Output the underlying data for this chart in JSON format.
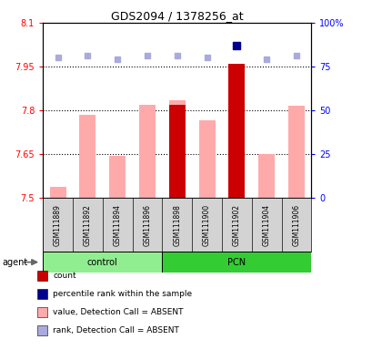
{
  "title": "GDS2094 / 1378256_at",
  "samples": [
    "GSM111889",
    "GSM111892",
    "GSM111894",
    "GSM111896",
    "GSM111898",
    "GSM111900",
    "GSM111902",
    "GSM111904",
    "GSM111906"
  ],
  "groups": [
    {
      "name": "control",
      "indices": [
        0,
        1,
        2,
        3
      ]
    },
    {
      "name": "PCN",
      "indices": [
        4,
        5,
        6,
        7,
        8
      ]
    }
  ],
  "ylim_left": [
    7.5,
    8.1
  ],
  "ylim_right": [
    0,
    100
  ],
  "yticks_left": [
    7.5,
    7.65,
    7.8,
    7.95,
    8.1
  ],
  "yticks_left_labels": [
    "7.5",
    "7.65",
    "7.8",
    "7.95",
    "8.1"
  ],
  "yticks_right": [
    0,
    25,
    50,
    75,
    100
  ],
  "yticks_right_labels": [
    "0",
    "25",
    "50",
    "75",
    "100%"
  ],
  "hlines": [
    7.65,
    7.8,
    7.95
  ],
  "values_pink": [
    7.538,
    7.785,
    7.645,
    7.818,
    7.835,
    7.765,
    7.96,
    7.65,
    7.815
  ],
  "values_red": [
    null,
    null,
    null,
    null,
    7.82,
    null,
    7.96,
    null,
    null
  ],
  "rank_blue_light": [
    80,
    81,
    79,
    81,
    81,
    80,
    null,
    79,
    81
  ],
  "rank_blue_dark": [
    null,
    null,
    null,
    null,
    null,
    null,
    87,
    null,
    null
  ],
  "bar_bottom": 7.5,
  "pink_color": "#ffaaaa",
  "red_color": "#cc0000",
  "blue_dark_color": "#00008b",
  "blue_light_color": "#aaaadd",
  "bg_plot": "#ffffff",
  "bg_sample": "#d3d3d3",
  "bg_group_control": "#90ee90",
  "bg_group_pcn": "#33cc33",
  "legend_items": [
    {
      "color": "#cc0000",
      "label": "count"
    },
    {
      "color": "#00008b",
      "label": "percentile rank within the sample"
    },
    {
      "color": "#ffaaaa",
      "label": "value, Detection Call = ABSENT"
    },
    {
      "color": "#aaaadd",
      "label": "rank, Detection Call = ABSENT"
    }
  ]
}
